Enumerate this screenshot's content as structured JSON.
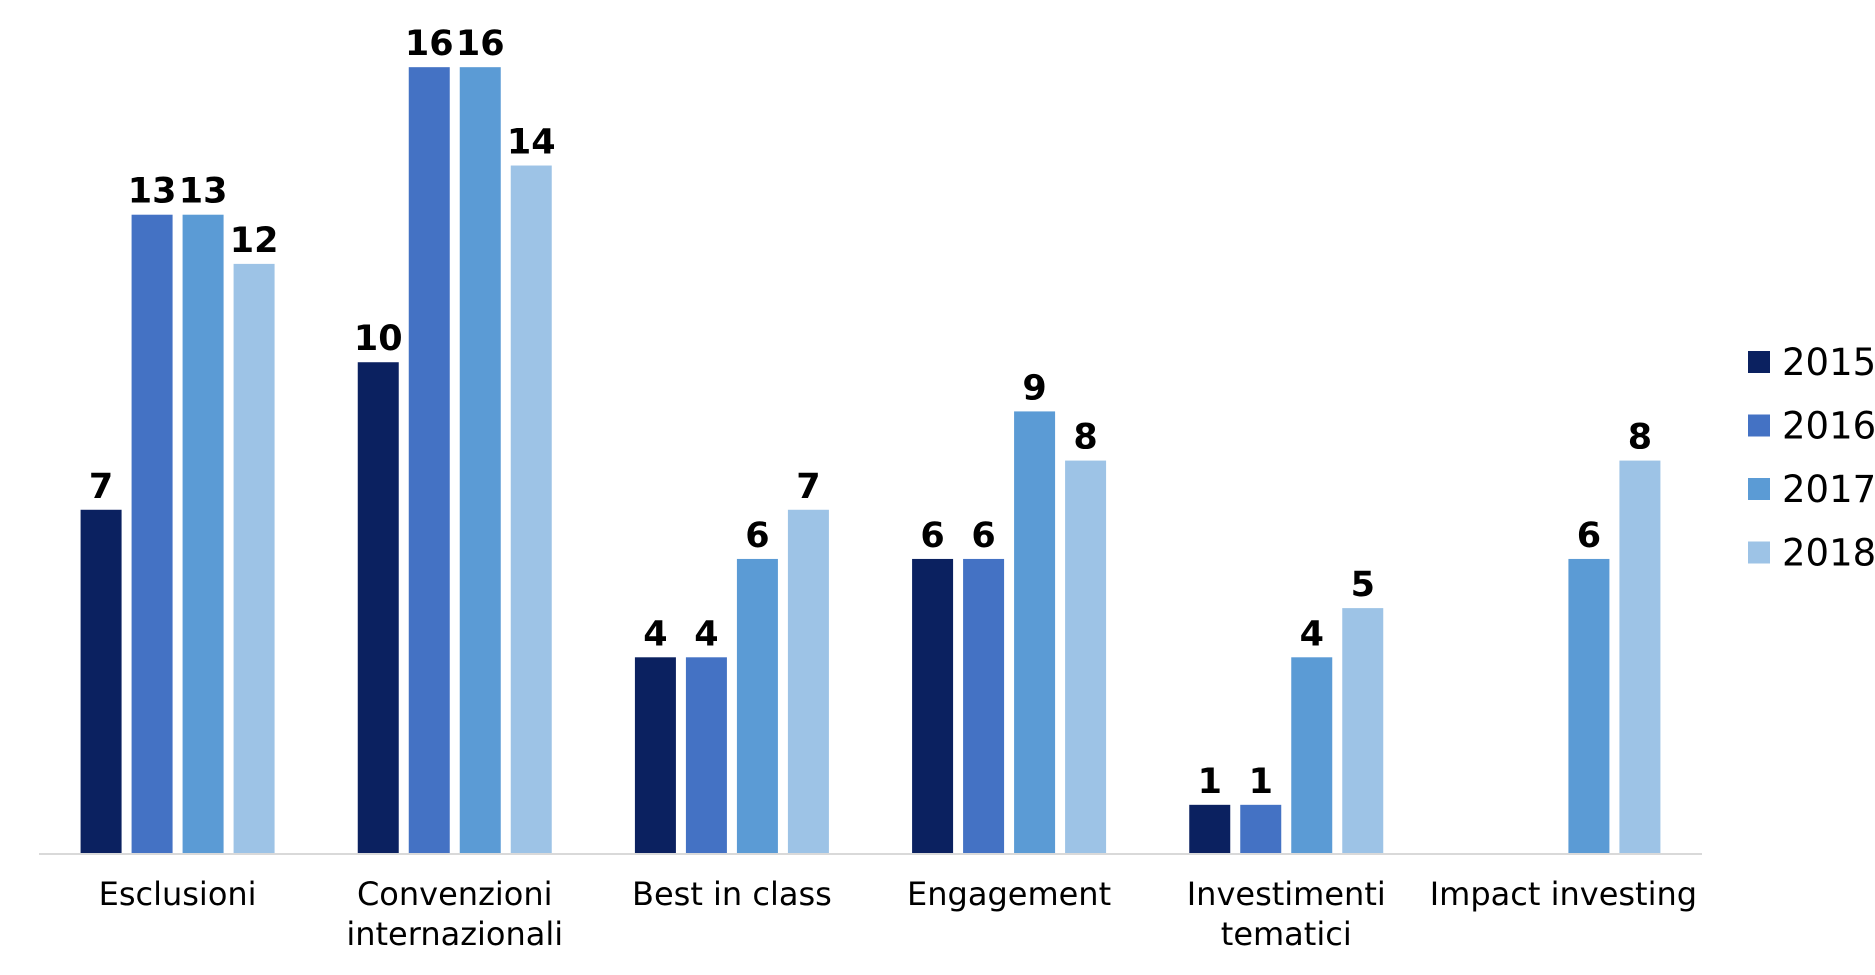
{
  "chart_data": {
    "type": "bar",
    "categories": [
      "Esclusioni",
      "Convenzioni internazionali",
      "Best in class",
      "Engagement",
      "Investimenti tematici",
      "Impact investing"
    ],
    "series": [
      {
        "name": "2015",
        "color": "#0b2160",
        "values": [
          7,
          10,
          4,
          6,
          1,
          null
        ]
      },
      {
        "name": "2016",
        "color": "#4472c4",
        "values": [
          13,
          16,
          4,
          6,
          1,
          null
        ]
      },
      {
        "name": "2017",
        "color": "#5b9bd5",
        "values": [
          13,
          16,
          6,
          9,
          4,
          6
        ]
      },
      {
        "name": "2018",
        "color": "#9dc3e6",
        "values": [
          12,
          14,
          7,
          8,
          5,
          8
        ]
      }
    ],
    "ylim": [
      0,
      17
    ],
    "legend": "right"
  }
}
